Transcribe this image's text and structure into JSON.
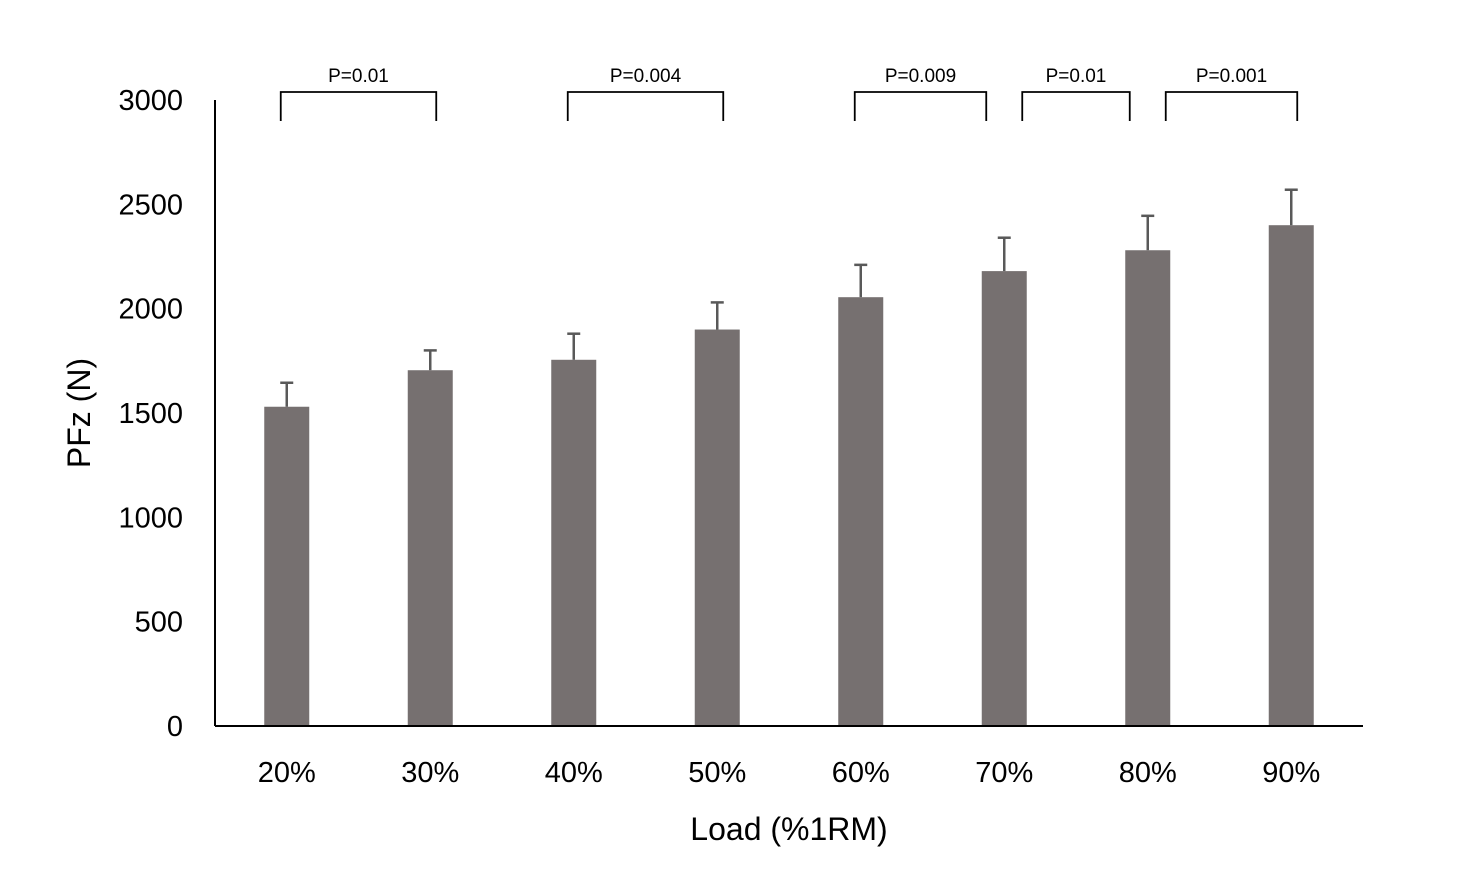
{
  "chart_data": {
    "type": "bar",
    "xlabel": "Load (%1RM)",
    "ylabel": "PFz (N)",
    "ylim": [
      0,
      3000
    ],
    "yticks": [
      0,
      500,
      1000,
      1500,
      2000,
      2500,
      3000
    ],
    "grid": false,
    "categories": [
      "20%",
      "30%",
      "40%",
      "50%",
      "60%",
      "70%",
      "80%",
      "90%"
    ],
    "values": [
      1530,
      1705,
      1755,
      1900,
      2055,
      2180,
      2280,
      2400
    ],
    "error_upper": [
      115,
      95,
      125,
      130,
      155,
      160,
      165,
      170
    ],
    "bar_color": "#767070",
    "annotations": [
      {
        "text": "P=0.01",
        "from": "20%",
        "to": "30%"
      },
      {
        "text": "P=0.004",
        "from": "40%",
        "to": "50%"
      },
      {
        "text": "P=0.009",
        "from": "60%",
        "to": "70%"
      },
      {
        "text": "P=0.01",
        "from": "70%",
        "to": "80%"
      },
      {
        "text": "P=0.001",
        "from": "80%",
        "to": "90%"
      }
    ]
  }
}
